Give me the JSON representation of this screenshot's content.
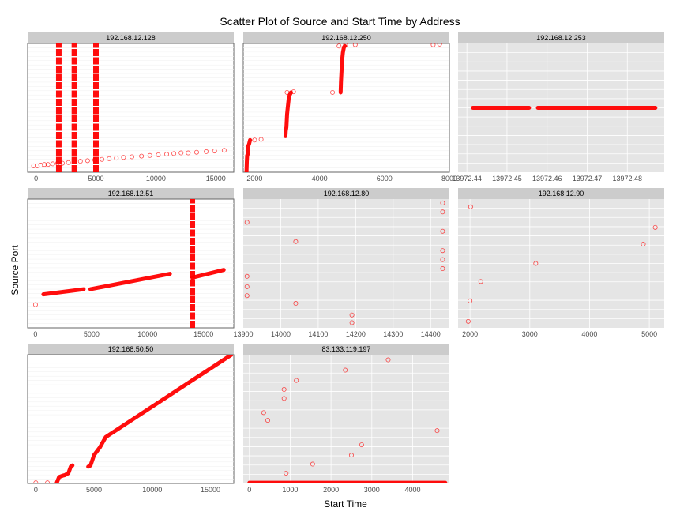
{
  "title": "Scatter Plot of Source and Start Time by Address",
  "xlabel": "Start Time",
  "ylabel": "Source Port",
  "colors": {
    "point": "#ff0000",
    "panel_bg": "#e5e5e5",
    "strip_bg": "#cccccc",
    "grid": "#ffffff",
    "tick_label": "#4d4d4d"
  },
  "chart_data": [
    {
      "type": "scatter",
      "address": "192.168.12.128",
      "xlim": [
        -700,
        16500
      ],
      "ylim": [
        0,
        100
      ],
      "xticks": [
        0,
        5000,
        10000,
        15000
      ],
      "xtick_labels": [
        "0",
        "5000",
        "10000",
        "15000"
      ],
      "style": "light",
      "scatter_points": [
        [
          -200,
          5
        ],
        [
          100,
          5
        ],
        [
          400,
          5.5
        ],
        [
          700,
          6
        ],
        [
          1000,
          6
        ],
        [
          1400,
          6.5
        ],
        [
          1800,
          7
        ],
        [
          2200,
          7
        ],
        [
          2700,
          7.5
        ],
        [
          3200,
          8
        ],
        [
          3700,
          8.5
        ],
        [
          4300,
          9
        ],
        [
          4900,
          9.5
        ],
        [
          5500,
          10
        ],
        [
          6100,
          10.5
        ],
        [
          6700,
          11
        ],
        [
          7300,
          11.5
        ],
        [
          8000,
          12
        ],
        [
          8800,
          12.5
        ],
        [
          9500,
          13
        ],
        [
          10200,
          13.5
        ],
        [
          10900,
          14
        ],
        [
          11500,
          14.5
        ],
        [
          12100,
          15
        ],
        [
          12700,
          15
        ],
        [
          13400,
          15.5
        ],
        [
          14200,
          16
        ],
        [
          14900,
          16.5
        ],
        [
          15700,
          17
        ]
      ],
      "vertical_bands": [
        {
          "x": 1900,
          "y_from": 0,
          "y_to": 100
        },
        {
          "x": 3200,
          "y_from": 0,
          "y_to": 100
        },
        {
          "x": 5000,
          "y_from": 0,
          "y_to": 100
        }
      ]
    },
    {
      "type": "scatter",
      "address": "192.168.12.250",
      "xlim": [
        1650,
        8000
      ],
      "ylim": [
        0,
        100
      ],
      "xticks": [
        2000,
        4000,
        6000,
        8000
      ],
      "xtick_labels": [
        "2000",
        "4000",
        "6000",
        "8000"
      ],
      "style": "light",
      "scatter_points": [
        [
          2000,
          25
        ],
        [
          2200,
          25.5
        ],
        [
          3000,
          62
        ],
        [
          3200,
          62.5
        ],
        [
          4400,
          62
        ],
        [
          4600,
          98
        ],
        [
          4800,
          99
        ],
        [
          5100,
          99
        ],
        [
          7500,
          99
        ],
        [
          7700,
          99.5
        ]
      ],
      "segments": [
        [
          [
            1750,
            0
          ],
          [
            1760,
            8
          ],
          [
            1770,
            13
          ],
          [
            1790,
            14
          ],
          [
            1800,
            20
          ],
          [
            1830,
            22
          ],
          [
            1860,
            25
          ]
        ],
        [
          [
            2950,
            28
          ],
          [
            2960,
            32
          ],
          [
            2980,
            35
          ],
          [
            3000,
            45
          ],
          [
            3020,
            50
          ],
          [
            3050,
            57
          ],
          [
            3080,
            60
          ],
          [
            3120,
            62
          ]
        ],
        [
          [
            4650,
            62
          ],
          [
            4660,
            70
          ],
          [
            4680,
            80
          ],
          [
            4700,
            88
          ],
          [
            4720,
            93
          ],
          [
            4750,
            97
          ],
          [
            4780,
            98
          ]
        ]
      ]
    },
    {
      "type": "scatter",
      "address": "192.168.12.253",
      "xlim": [
        13972.4378,
        13972.4892
      ],
      "ylim": [
        0,
        100
      ],
      "xticks": [
        13972.44,
        13972.45,
        13972.46,
        13972.47,
        13972.48
      ],
      "xtick_labels": [
        "13972.44",
        "13972.45",
        "13972.46",
        "13972.47",
        "13972.48"
      ],
      "style": "grey",
      "horizontal_runs": [
        {
          "x_from": 13972.4415,
          "x_to": 13972.4555,
          "y": 50
        },
        {
          "x_from": 13972.4577,
          "x_to": 13972.487,
          "y": 50
        }
      ]
    },
    {
      "type": "scatter",
      "address": "192.168.12.51",
      "xlim": [
        -700,
        17700
      ],
      "ylim": [
        0,
        100
      ],
      "xticks": [
        0,
        5000,
        10000,
        15000
      ],
      "xtick_labels": [
        "0",
        "5000",
        "10000",
        "15000"
      ],
      "style": "light",
      "scatter_points": [
        [
          0,
          18
        ]
      ],
      "segments": [
        [
          [
            700,
            26
          ],
          [
            4300,
            30
          ]
        ],
        [
          [
            4900,
            30
          ],
          [
            12000,
            42
          ]
        ],
        [
          [
            14000,
            39
          ],
          [
            16800,
            45
          ]
        ]
      ],
      "vertical_bands": [
        {
          "x": 14000,
          "y_from": 0,
          "y_to": 100
        }
      ]
    },
    {
      "type": "scatter",
      "address": "192.168.12.80",
      "xlim": [
        13900,
        14450
      ],
      "ylim": [
        0,
        100
      ],
      "xticks": [
        13900,
        14000,
        14100,
        14200,
        14300,
        14400
      ],
      "xtick_labels": [
        "13900",
        "14000",
        "14100",
        "14200",
        "14300",
        "14400"
      ],
      "style": "grey",
      "scatter_points": [
        [
          13910,
          82
        ],
        [
          13910,
          40
        ],
        [
          13910,
          32
        ],
        [
          13910,
          25
        ],
        [
          14040,
          67
        ],
        [
          14040,
          19
        ],
        [
          14190,
          10
        ],
        [
          14190,
          4
        ],
        [
          14432,
          97
        ],
        [
          14432,
          90
        ],
        [
          14432,
          75
        ],
        [
          14432,
          60
        ],
        [
          14432,
          53
        ],
        [
          14432,
          46
        ]
      ]
    },
    {
      "type": "scatter",
      "address": "192.168.12.90",
      "xlim": [
        1800,
        5250
      ],
      "ylim": [
        0,
        100
      ],
      "xticks": [
        2000,
        3000,
        4000,
        5000
      ],
      "xtick_labels": [
        "2000",
        "3000",
        "4000",
        "5000"
      ],
      "style": "grey",
      "scatter_points": [
        [
          1970,
          5
        ],
        [
          2000,
          21
        ],
        [
          2010,
          94
        ],
        [
          2180,
          36
        ],
        [
          3100,
          50
        ],
        [
          4900,
          65
        ],
        [
          5100,
          78
        ]
      ]
    },
    {
      "type": "scatter",
      "address": "192.168.50.50",
      "xlim": [
        -700,
        17000
      ],
      "ylim": [
        0,
        100
      ],
      "xticks": [
        0,
        5000,
        10000,
        15000
      ],
      "xtick_labels": [
        "0",
        "5000",
        "10000",
        "15000"
      ],
      "style": "light",
      "scatter_points": [
        [
          0,
          0.5
        ],
        [
          1000,
          0.5
        ]
      ],
      "segments": [
        [
          [
            1800,
            0.5
          ],
          [
            2000,
            5
          ],
          [
            2300,
            6
          ],
          [
            2500,
            6.5
          ],
          [
            2800,
            8
          ],
          [
            3000,
            13
          ],
          [
            3150,
            14
          ]
        ],
        [
          [
            4500,
            13
          ],
          [
            4700,
            14
          ],
          [
            5000,
            22
          ],
          [
            5500,
            28
          ],
          [
            6000,
            36
          ],
          [
            16800,
            100
          ]
        ]
      ]
    },
    {
      "type": "scatter",
      "address": "83.133.119.197",
      "xlim": [
        -150,
        4900
      ],
      "ylim": [
        0,
        100
      ],
      "xticks": [
        0,
        1000,
        2000,
        3000,
        4000
      ],
      "xtick_labels": [
        "0",
        "1000",
        "2000",
        "3000",
        "4000"
      ],
      "style": "grey",
      "scatter_points": [
        [
          350,
          55
        ],
        [
          450,
          49
        ],
        [
          850,
          66
        ],
        [
          850,
          73
        ],
        [
          900,
          8
        ],
        [
          1150,
          80
        ],
        [
          1550,
          15
        ],
        [
          2350,
          88
        ],
        [
          2500,
          22
        ],
        [
          2750,
          30
        ],
        [
          3400,
          96
        ],
        [
          4600,
          41
        ]
      ],
      "horizontal_runs": [
        {
          "x_from": 0,
          "x_to": 4800,
          "y": 0.5
        }
      ]
    }
  ]
}
